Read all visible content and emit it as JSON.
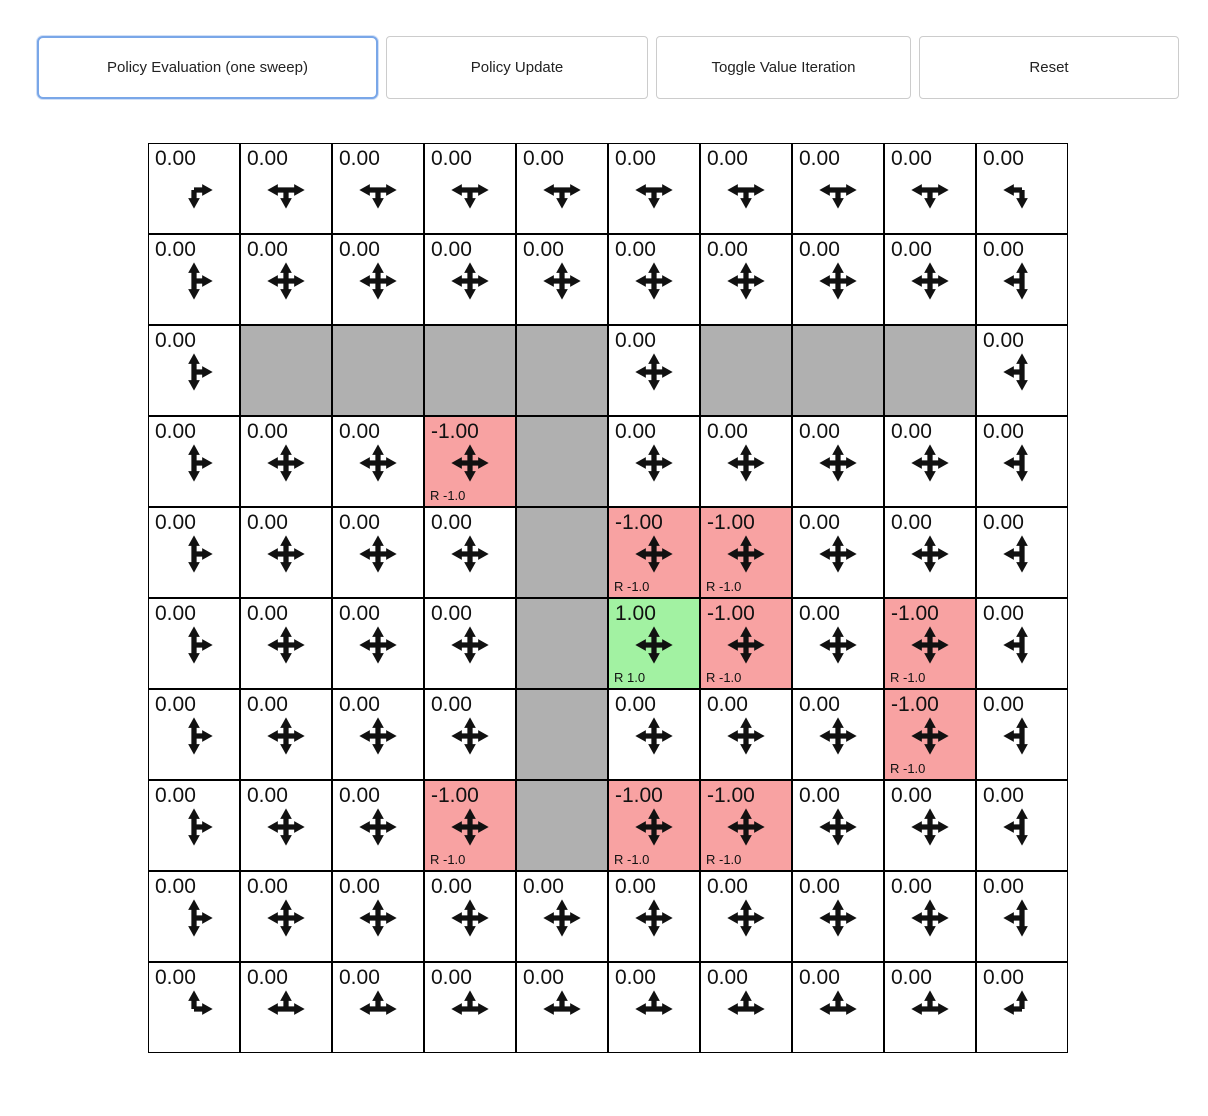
{
  "toolbar": {
    "buttons": [
      {
        "label": "Policy Evaluation (one sweep)",
        "focused": true
      },
      {
        "label": "Policy Update",
        "focused": false
      },
      {
        "label": "Toggle Value Iteration",
        "focused": false
      },
      {
        "label": "Reset",
        "focused": false
      }
    ]
  },
  "colors": {
    "wall": "#b0b0b0",
    "negative_reward": "#f8a2a2",
    "positive_reward": "#a2f2a2",
    "focus_ring": "#7aa7e8",
    "grid_line": "#000000"
  },
  "grid": {
    "rows": [
      [
        {
          "v": "0.00",
          "t": "n",
          "a": "dr"
        },
        {
          "v": "0.00",
          "t": "n",
          "a": "dlr"
        },
        {
          "v": "0.00",
          "t": "n",
          "a": "dlr"
        },
        {
          "v": "0.00",
          "t": "n",
          "a": "dlr"
        },
        {
          "v": "0.00",
          "t": "n",
          "a": "dlr"
        },
        {
          "v": "0.00",
          "t": "n",
          "a": "dlr"
        },
        {
          "v": "0.00",
          "t": "n",
          "a": "dlr"
        },
        {
          "v": "0.00",
          "t": "n",
          "a": "dlr"
        },
        {
          "v": "0.00",
          "t": "n",
          "a": "dlr"
        },
        {
          "v": "0.00",
          "t": "n",
          "a": "dl"
        }
      ],
      [
        {
          "v": "0.00",
          "t": "n",
          "a": "udr"
        },
        {
          "v": "0.00",
          "t": "n",
          "a": "udlr"
        },
        {
          "v": "0.00",
          "t": "n",
          "a": "udlr"
        },
        {
          "v": "0.00",
          "t": "n",
          "a": "udlr"
        },
        {
          "v": "0.00",
          "t": "n",
          "a": "udlr"
        },
        {
          "v": "0.00",
          "t": "n",
          "a": "udlr"
        },
        {
          "v": "0.00",
          "t": "n",
          "a": "udlr"
        },
        {
          "v": "0.00",
          "t": "n",
          "a": "udlr"
        },
        {
          "v": "0.00",
          "t": "n",
          "a": "udlr"
        },
        {
          "v": "0.00",
          "t": "n",
          "a": "udl"
        }
      ],
      [
        {
          "v": "0.00",
          "t": "n",
          "a": "udr"
        },
        {
          "t": "w"
        },
        {
          "t": "w"
        },
        {
          "t": "w"
        },
        {
          "t": "w"
        },
        {
          "v": "0.00",
          "t": "n",
          "a": "udlr"
        },
        {
          "t": "w"
        },
        {
          "t": "w"
        },
        {
          "t": "w"
        },
        {
          "v": "0.00",
          "t": "n",
          "a": "udl"
        }
      ],
      [
        {
          "v": "0.00",
          "t": "n",
          "a": "udr"
        },
        {
          "v": "0.00",
          "t": "n",
          "a": "udlr"
        },
        {
          "v": "0.00",
          "t": "n",
          "a": "udlr"
        },
        {
          "v": "-1.00",
          "t": "neg",
          "a": "udlr",
          "r": "R -1.0"
        },
        {
          "t": "w"
        },
        {
          "v": "0.00",
          "t": "n",
          "a": "udlr"
        },
        {
          "v": "0.00",
          "t": "n",
          "a": "udlr"
        },
        {
          "v": "0.00",
          "t": "n",
          "a": "udlr"
        },
        {
          "v": "0.00",
          "t": "n",
          "a": "udlr"
        },
        {
          "v": "0.00",
          "t": "n",
          "a": "udl"
        }
      ],
      [
        {
          "v": "0.00",
          "t": "n",
          "a": "udr"
        },
        {
          "v": "0.00",
          "t": "n",
          "a": "udlr"
        },
        {
          "v": "0.00",
          "t": "n",
          "a": "udlr"
        },
        {
          "v": "0.00",
          "t": "n",
          "a": "udlr"
        },
        {
          "t": "w"
        },
        {
          "v": "-1.00",
          "t": "neg",
          "a": "udlr",
          "r": "R -1.0"
        },
        {
          "v": "-1.00",
          "t": "neg",
          "a": "udlr",
          "r": "R -1.0"
        },
        {
          "v": "0.00",
          "t": "n",
          "a": "udlr"
        },
        {
          "v": "0.00",
          "t": "n",
          "a": "udlr"
        },
        {
          "v": "0.00",
          "t": "n",
          "a": "udl"
        }
      ],
      [
        {
          "v": "0.00",
          "t": "n",
          "a": "udr"
        },
        {
          "v": "0.00",
          "t": "n",
          "a": "udlr"
        },
        {
          "v": "0.00",
          "t": "n",
          "a": "udlr"
        },
        {
          "v": "0.00",
          "t": "n",
          "a": "udlr"
        },
        {
          "t": "w"
        },
        {
          "v": "1.00",
          "t": "pos",
          "a": "udlr",
          "r": "R 1.0"
        },
        {
          "v": "-1.00",
          "t": "neg",
          "a": "udlr",
          "r": "R -1.0"
        },
        {
          "v": "0.00",
          "t": "n",
          "a": "udlr"
        },
        {
          "v": "-1.00",
          "t": "neg",
          "a": "udlr",
          "r": "R -1.0"
        },
        {
          "v": "0.00",
          "t": "n",
          "a": "udl"
        }
      ],
      [
        {
          "v": "0.00",
          "t": "n",
          "a": "udr"
        },
        {
          "v": "0.00",
          "t": "n",
          "a": "udlr"
        },
        {
          "v": "0.00",
          "t": "n",
          "a": "udlr"
        },
        {
          "v": "0.00",
          "t": "n",
          "a": "udlr"
        },
        {
          "t": "w"
        },
        {
          "v": "0.00",
          "t": "n",
          "a": "udlr"
        },
        {
          "v": "0.00",
          "t": "n",
          "a": "udlr"
        },
        {
          "v": "0.00",
          "t": "n",
          "a": "udlr"
        },
        {
          "v": "-1.00",
          "t": "neg",
          "a": "udlr",
          "r": "R -1.0"
        },
        {
          "v": "0.00",
          "t": "n",
          "a": "udl"
        }
      ],
      [
        {
          "v": "0.00",
          "t": "n",
          "a": "udr"
        },
        {
          "v": "0.00",
          "t": "n",
          "a": "udlr"
        },
        {
          "v": "0.00",
          "t": "n",
          "a": "udlr"
        },
        {
          "v": "-1.00",
          "t": "neg",
          "a": "udlr",
          "r": "R -1.0"
        },
        {
          "t": "w"
        },
        {
          "v": "-1.00",
          "t": "neg",
          "a": "udlr",
          "r": "R -1.0"
        },
        {
          "v": "-1.00",
          "t": "neg",
          "a": "udlr",
          "r": "R -1.0"
        },
        {
          "v": "0.00",
          "t": "n",
          "a": "udlr"
        },
        {
          "v": "0.00",
          "t": "n",
          "a": "udlr"
        },
        {
          "v": "0.00",
          "t": "n",
          "a": "udl"
        }
      ],
      [
        {
          "v": "0.00",
          "t": "n",
          "a": "udr"
        },
        {
          "v": "0.00",
          "t": "n",
          "a": "udlr"
        },
        {
          "v": "0.00",
          "t": "n",
          "a": "udlr"
        },
        {
          "v": "0.00",
          "t": "n",
          "a": "udlr"
        },
        {
          "v": "0.00",
          "t": "n",
          "a": "udlr"
        },
        {
          "v": "0.00",
          "t": "n",
          "a": "udlr"
        },
        {
          "v": "0.00",
          "t": "n",
          "a": "udlr"
        },
        {
          "v": "0.00",
          "t": "n",
          "a": "udlr"
        },
        {
          "v": "0.00",
          "t": "n",
          "a": "udlr"
        },
        {
          "v": "0.00",
          "t": "n",
          "a": "udl"
        }
      ],
      [
        {
          "v": "0.00",
          "t": "n",
          "a": "ur"
        },
        {
          "v": "0.00",
          "t": "n",
          "a": "ulr"
        },
        {
          "v": "0.00",
          "t": "n",
          "a": "ulr"
        },
        {
          "v": "0.00",
          "t": "n",
          "a": "ulr"
        },
        {
          "v": "0.00",
          "t": "n",
          "a": "ulr"
        },
        {
          "v": "0.00",
          "t": "n",
          "a": "ulr"
        },
        {
          "v": "0.00",
          "t": "n",
          "a": "ulr"
        },
        {
          "v": "0.00",
          "t": "n",
          "a": "ulr"
        },
        {
          "v": "0.00",
          "t": "n",
          "a": "ulr"
        },
        {
          "v": "0.00",
          "t": "n",
          "a": "ul"
        }
      ]
    ]
  }
}
